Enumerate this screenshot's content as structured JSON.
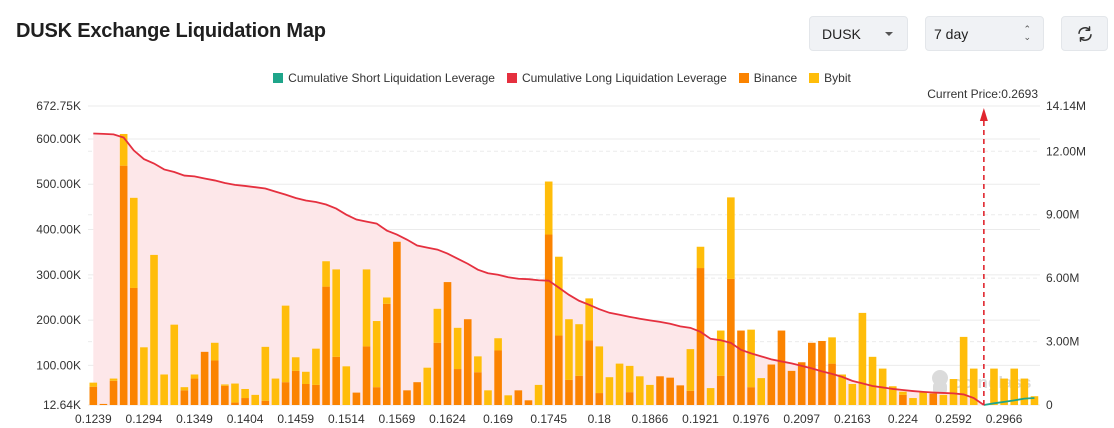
{
  "header": {
    "title": "DUSK Exchange Liquidation Map",
    "coin_select": "DUSK",
    "period_select": "7 day",
    "refresh_icon": "refresh-icon"
  },
  "colors": {
    "short": "#1fa58a",
    "long": "#e5303f",
    "long_fill": "#fde7e9",
    "binance": "#fb8300",
    "bybit": "#ffbd0a",
    "current_price": "#e0262e"
  },
  "legend": [
    {
      "label": "Cumulative Short Liquidation Leverage",
      "color": "#1fa58a"
    },
    {
      "label": "Cumulative Long Liquidation Leverage",
      "color": "#e5303f"
    },
    {
      "label": "Binance",
      "color": "#fb8300"
    },
    {
      "label": "Bybit",
      "color": "#ffbd0a"
    }
  ],
  "watermark": "coinglass",
  "chart_data": {
    "type": "bar",
    "stacked": true,
    "title": "",
    "current_price_label": "Current Price:0.2693",
    "x_tick_labels": [
      "0.1239",
      "0.1294",
      "0.1349",
      "0.1404",
      "0.1459",
      "0.1514",
      "0.1569",
      "0.1624",
      "0.169",
      "0.1745",
      "0.18",
      "0.1866",
      "0.1921",
      "0.1976",
      "0.2097",
      "0.2163",
      "0.224",
      "0.2592",
      "0.2966"
    ],
    "x_tick_interval": 5,
    "current_price_index": 88,
    "y_left": {
      "ticks": [
        "12.64K",
        "100.00K",
        "200.00K",
        "300.00K",
        "400.00K",
        "500.00K",
        "600.00K",
        "672.75K"
      ],
      "min": 12640,
      "max": 672750
    },
    "y_right": {
      "ticks": [
        "0",
        "3.00M",
        "6.00M",
        "9.00M",
        "12.00M",
        "14.14M"
      ],
      "min": 0,
      "max": 14140000
    },
    "grid": true,
    "legend_position": "top",
    "series": [
      {
        "name": "Binance",
        "axis": "left",
        "type": "bar",
        "values": [
          53000,
          15000,
          66000,
          541000,
          271000,
          0,
          0,
          0,
          0,
          45000,
          71000,
          130000,
          111000,
          55000,
          18000,
          28000,
          0,
          22000,
          0,
          63000,
          88000,
          59000,
          57000,
          274000,
          119000,
          0,
          40000,
          142000,
          52000,
          236000,
          373000,
          45000,
          63000,
          0,
          150000,
          284000,
          92000,
          202000,
          85000,
          0,
          133000,
          0,
          45000,
          23000,
          0,
          389000,
          166000,
          68000,
          77000,
          155000,
          39000,
          0,
          0,
          41000,
          0,
          0,
          76000,
          73000,
          56000,
          44000,
          315000,
          0,
          77000,
          291000,
          177000,
          52000,
          0,
          102000,
          177000,
          88000,
          107000,
          150000,
          154000,
          104000,
          0,
          0,
          0,
          0,
          0,
          0,
          35000,
          0,
          0,
          38000,
          0,
          0,
          0,
          0,
          0,
          0,
          0,
          0,
          0,
          0
        ]
      },
      {
        "name": "Bybit",
        "axis": "left",
        "type": "bar",
        "values": [
          9000,
          0,
          5000,
          70000,
          199000,
          140000,
          344000,
          80000,
          190000,
          7000,
          9000,
          0,
          39000,
          3000,
          42000,
          20000,
          35000,
          119000,
          71000,
          169000,
          30000,
          27000,
          80000,
          56000,
          193000,
          98000,
          0,
          170000,
          146000,
          14000,
          0,
          0,
          0,
          95000,
          75000,
          0,
          91000,
          0,
          35000,
          45000,
          27000,
          34000,
          0,
          0,
          57000,
          117000,
          174000,
          134000,
          114000,
          93000,
          103000,
          74000,
          104000,
          58000,
          76000,
          57000,
          0,
          0,
          0,
          92000,
          47000,
          50000,
          100000,
          180000,
          0,
          127000,
          72000,
          0,
          0,
          0,
          0,
          0,
          0,
          58000,
          80000,
          59000,
          216000,
          119000,
          93000,
          54000,
          7000,
          28000,
          42000,
          0,
          35000,
          70000,
          163000,
          93000,
          0,
          93000,
          71000,
          93000,
          71000,
          32000
        ]
      },
      {
        "name": "Cumulative Long Liquidation Leverage",
        "axis": "right",
        "type": "line",
        "values": [
          12840000,
          12820000,
          12800000,
          12650000,
          12040000,
          11630000,
          11420000,
          11140000,
          11020000,
          10850000,
          10810000,
          10710000,
          10620000,
          10500000,
          10410000,
          10360000,
          10300000,
          10240000,
          10090000,
          9950000,
          9790000,
          9670000,
          9600000,
          9480000,
          9290000,
          9000000,
          8770000,
          8670000,
          8580000,
          8250000,
          8060000,
          7820000,
          7540000,
          7440000,
          7350000,
          7160000,
          6920000,
          6680000,
          6400000,
          6230000,
          6160000,
          6040000,
          5970000,
          5950000,
          5900000,
          5880000,
          5550000,
          5210000,
          4930000,
          4740000,
          4530000,
          4360000,
          4270000,
          4170000,
          4080000,
          4000000,
          3930000,
          3840000,
          3720000,
          3650000,
          3460000,
          3130000,
          3060000,
          2940000,
          2610000,
          2440000,
          2300000,
          2160000,
          2060000,
          1970000,
          1850000,
          1730000,
          1590000,
          1470000,
          1330000,
          1140000,
          1020000,
          900000,
          830000,
          760000,
          710000,
          660000,
          620000,
          590000,
          570000,
          550000,
          500000,
          330000,
          0,
          null,
          null,
          null,
          null,
          null
        ]
      },
      {
        "name": "Cumulative Short Liquidation Leverage",
        "axis": "right",
        "type": "line",
        "values": [
          null,
          null,
          null,
          null,
          null,
          null,
          null,
          null,
          null,
          null,
          null,
          null,
          null,
          null,
          null,
          null,
          null,
          null,
          null,
          null,
          null,
          null,
          null,
          null,
          null,
          null,
          null,
          null,
          null,
          null,
          null,
          null,
          null,
          null,
          null,
          null,
          null,
          null,
          null,
          null,
          null,
          null,
          null,
          null,
          null,
          null,
          null,
          null,
          null,
          null,
          null,
          null,
          null,
          null,
          null,
          null,
          null,
          null,
          null,
          null,
          null,
          null,
          null,
          null,
          null,
          null,
          null,
          null,
          null,
          null,
          null,
          null,
          null,
          null,
          null,
          null,
          null,
          null,
          null,
          null,
          null,
          null,
          null,
          null,
          null,
          null,
          null,
          null,
          0,
          80000,
          150000,
          220000,
          300000,
          330000
        ]
      }
    ]
  }
}
